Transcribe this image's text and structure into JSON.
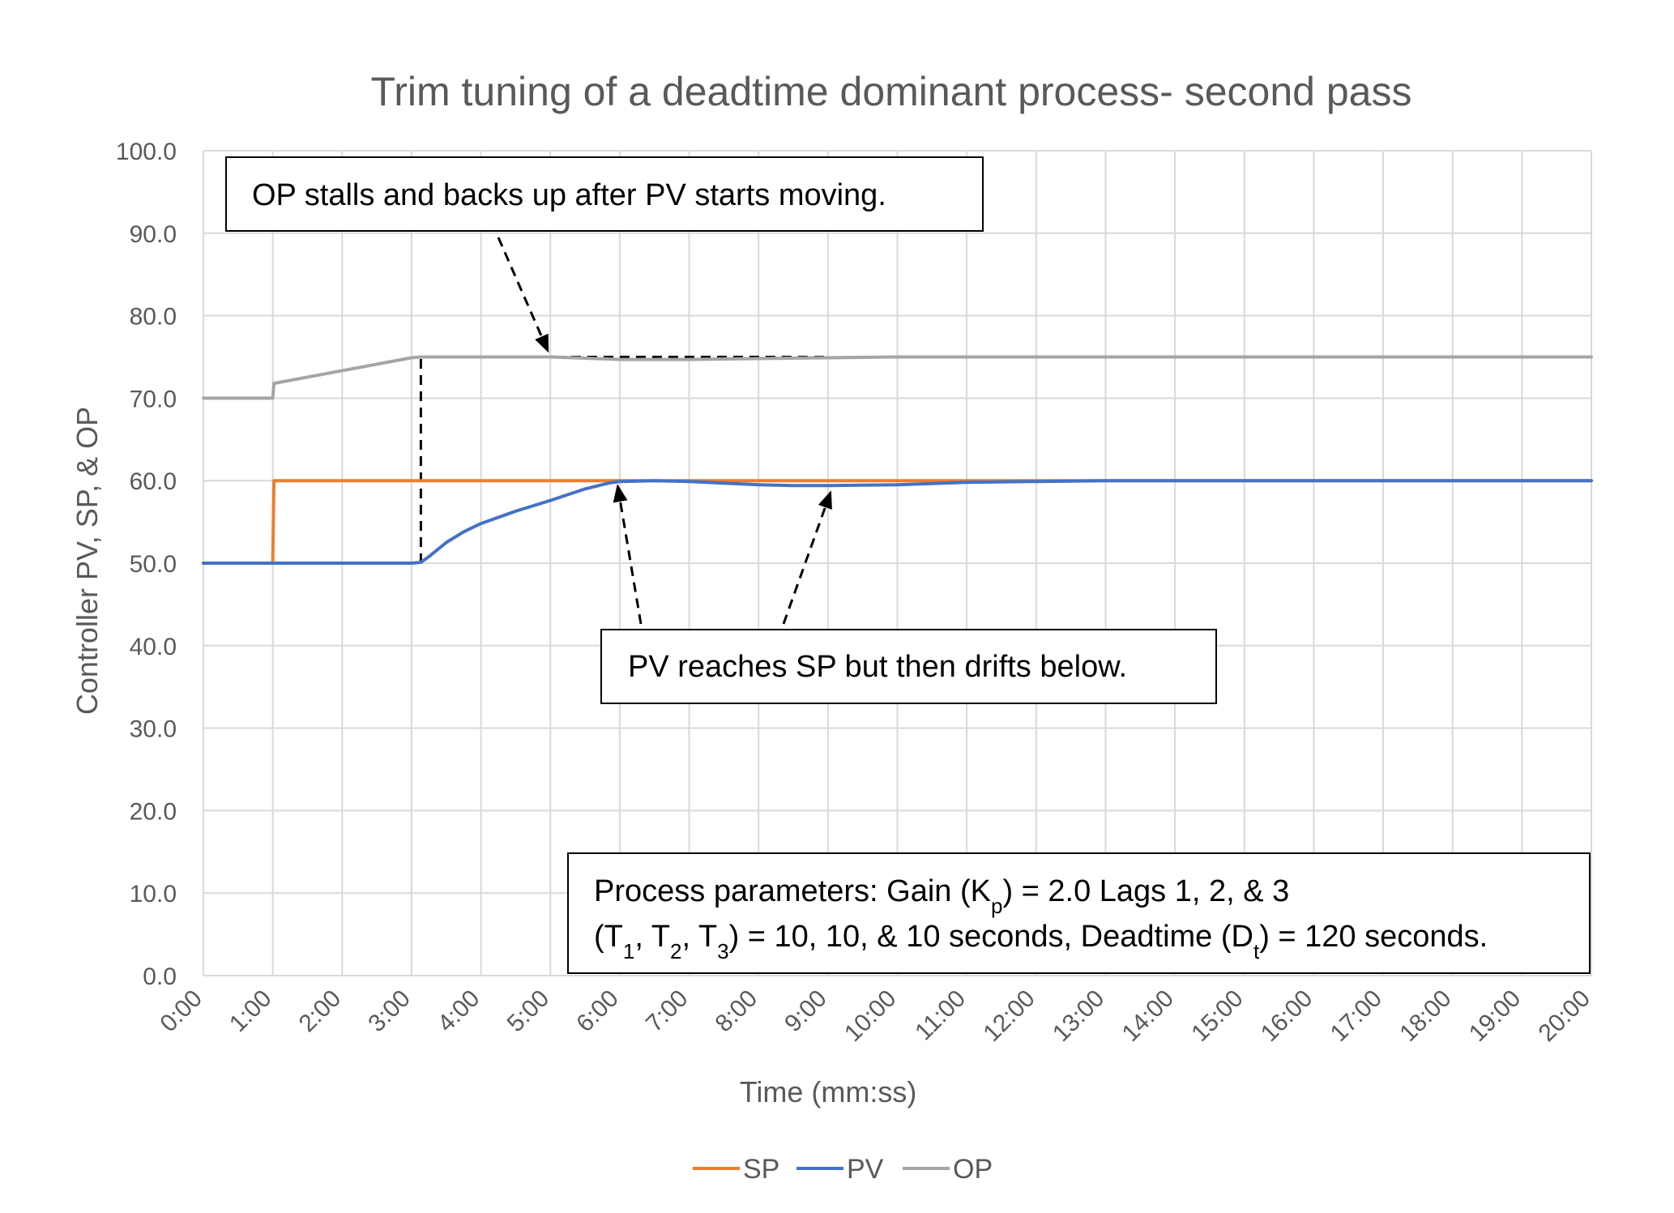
{
  "chart_data": {
    "type": "line",
    "title": "Trim tuning of a deadtime dominant process- second pass",
    "xlabel": "Time (mm:ss)",
    "ylabel": "Controller PV, SP, & OP",
    "xlim_seconds": [
      0,
      1200
    ],
    "ylim": [
      0,
      100
    ],
    "y_ticks": [
      "0.0",
      "10.0",
      "20.0",
      "30.0",
      "40.0",
      "50.0",
      "60.0",
      "70.0",
      "80.0",
      "90.0",
      "100.0"
    ],
    "x_ticks": [
      "0:00",
      "1:00",
      "2:00",
      "3:00",
      "4:00",
      "5:00",
      "6:00",
      "7:00",
      "8:00",
      "9:00",
      "10:00",
      "11:00",
      "12:00",
      "13:00",
      "14:00",
      "15:00",
      "16:00",
      "17:00",
      "18:00",
      "19:00",
      "20:00"
    ],
    "grid": true,
    "legend_position": "bottom",
    "series": [
      {
        "name": "SP",
        "color": "#ED7D31",
        "points": [
          [
            "0:00",
            50
          ],
          [
            "1:00",
            50
          ],
          [
            "1:01",
            60
          ],
          [
            "20:00",
            60
          ]
        ]
      },
      {
        "name": "PV",
        "color": "#4472C4",
        "points": [
          [
            "0:00",
            50
          ],
          [
            "3:00",
            50
          ],
          [
            "3:08",
            50.1
          ],
          [
            "3:15",
            50.8
          ],
          [
            "3:30",
            52.5
          ],
          [
            "3:45",
            53.8
          ],
          [
            "4:00",
            54.8
          ],
          [
            "4:30",
            56.3
          ],
          [
            "5:00",
            57.6
          ],
          [
            "5:30",
            59.0
          ],
          [
            "5:50",
            59.7
          ],
          [
            "6:00",
            59.9
          ],
          [
            "6:30",
            60.0
          ],
          [
            "7:00",
            59.9
          ],
          [
            "7:30",
            59.7
          ],
          [
            "8:00",
            59.5
          ],
          [
            "8:30",
            59.4
          ],
          [
            "9:00",
            59.4
          ],
          [
            "10:00",
            59.5
          ],
          [
            "11:00",
            59.8
          ],
          [
            "12:00",
            59.9
          ],
          [
            "13:00",
            60.0
          ],
          [
            "20:00",
            60.0
          ]
        ]
      },
      {
        "name": "OP",
        "color": "#A5A5A5",
        "points": [
          [
            "0:00",
            70
          ],
          [
            "1:00",
            70
          ],
          [
            "1:01",
            71.8
          ],
          [
            "3:00",
            74.9
          ],
          [
            "3:08",
            75.0
          ],
          [
            "5:00",
            75.0
          ],
          [
            "6:00",
            74.7
          ],
          [
            "7:00",
            74.7
          ],
          [
            "8:00",
            74.8
          ],
          [
            "9:00",
            74.9
          ],
          [
            "10:00",
            75.0
          ],
          [
            "20:00",
            75.0
          ]
        ]
      }
    ],
    "reference_lines": [
      {
        "style": "dashed",
        "color": "#000000",
        "points": [
          [
            "3:08",
            50
          ],
          [
            "3:08",
            75
          ],
          [
            "9:00",
            75
          ]
        ]
      }
    ],
    "annotations": [
      {
        "text": "OP stalls and backs up after PV starts moving.",
        "arrow_targets": [
          [
            "5:00",
            75
          ]
        ]
      },
      {
        "text": "PV reaches SP but then drifts below.",
        "arrow_targets": [
          [
            "6:00",
            60
          ],
          [
            "9:00",
            59.4
          ]
        ]
      }
    ],
    "params_box": {
      "line1_prefix": "Process parameters:  Gain (K",
      "line1_sub": "p",
      "line1_suffix": ") = 2.0 Lags 1, 2, & 3",
      "line2": [
        {
          "t": "(T"
        },
        {
          "s": "1"
        },
        {
          "t": ", T"
        },
        {
          "s": "2"
        },
        {
          "t": ", T"
        },
        {
          "s": "3"
        },
        {
          "t": ") = 10, 10, & 10 seconds, Deadtime (D"
        },
        {
          "s": "t"
        },
        {
          "t": ") = 120 seconds."
        }
      ]
    }
  }
}
